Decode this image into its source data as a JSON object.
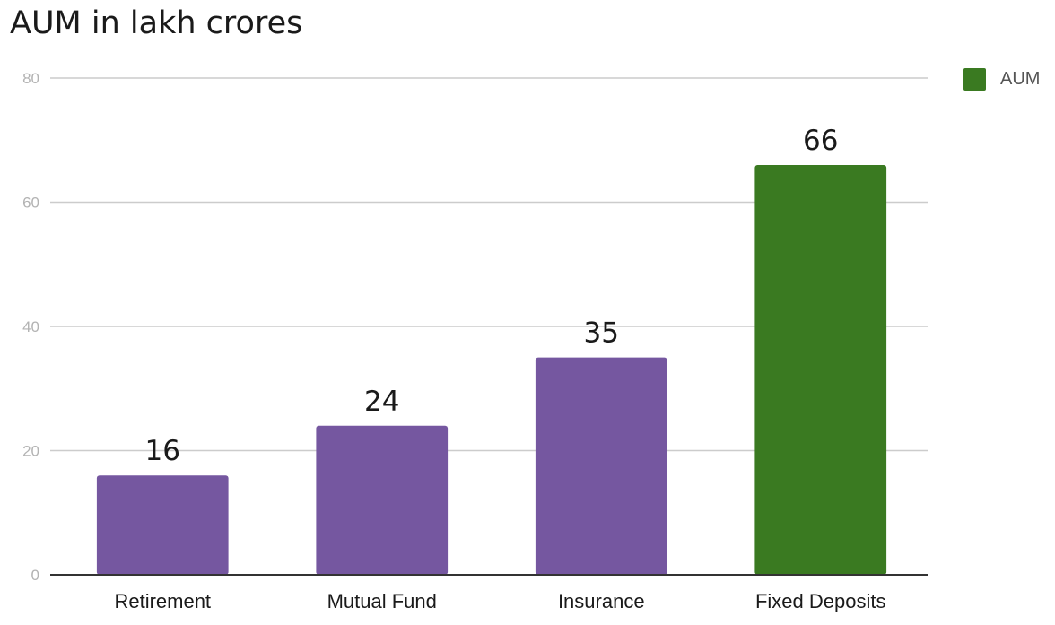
{
  "chart_data": {
    "type": "bar",
    "title": "AUM in lakh crores",
    "categories": [
      "Retirement",
      "Mutual Fund",
      "Insurance",
      "Fixed Deposits"
    ],
    "series": [
      {
        "name": "AUM",
        "values": [
          16,
          24,
          35,
          66
        ]
      }
    ],
    "bar_colors": [
      "#7557a0",
      "#7557a0",
      "#7557a0",
      "#3a7a21"
    ],
    "legend_color": "#3a7a21",
    "yticks": [
      0,
      20,
      40,
      60,
      80
    ],
    "ylim": [
      0,
      80
    ],
    "xlabel": "",
    "ylabel": "",
    "grid": true,
    "legend_position": "top-right",
    "data_labels": true
  }
}
